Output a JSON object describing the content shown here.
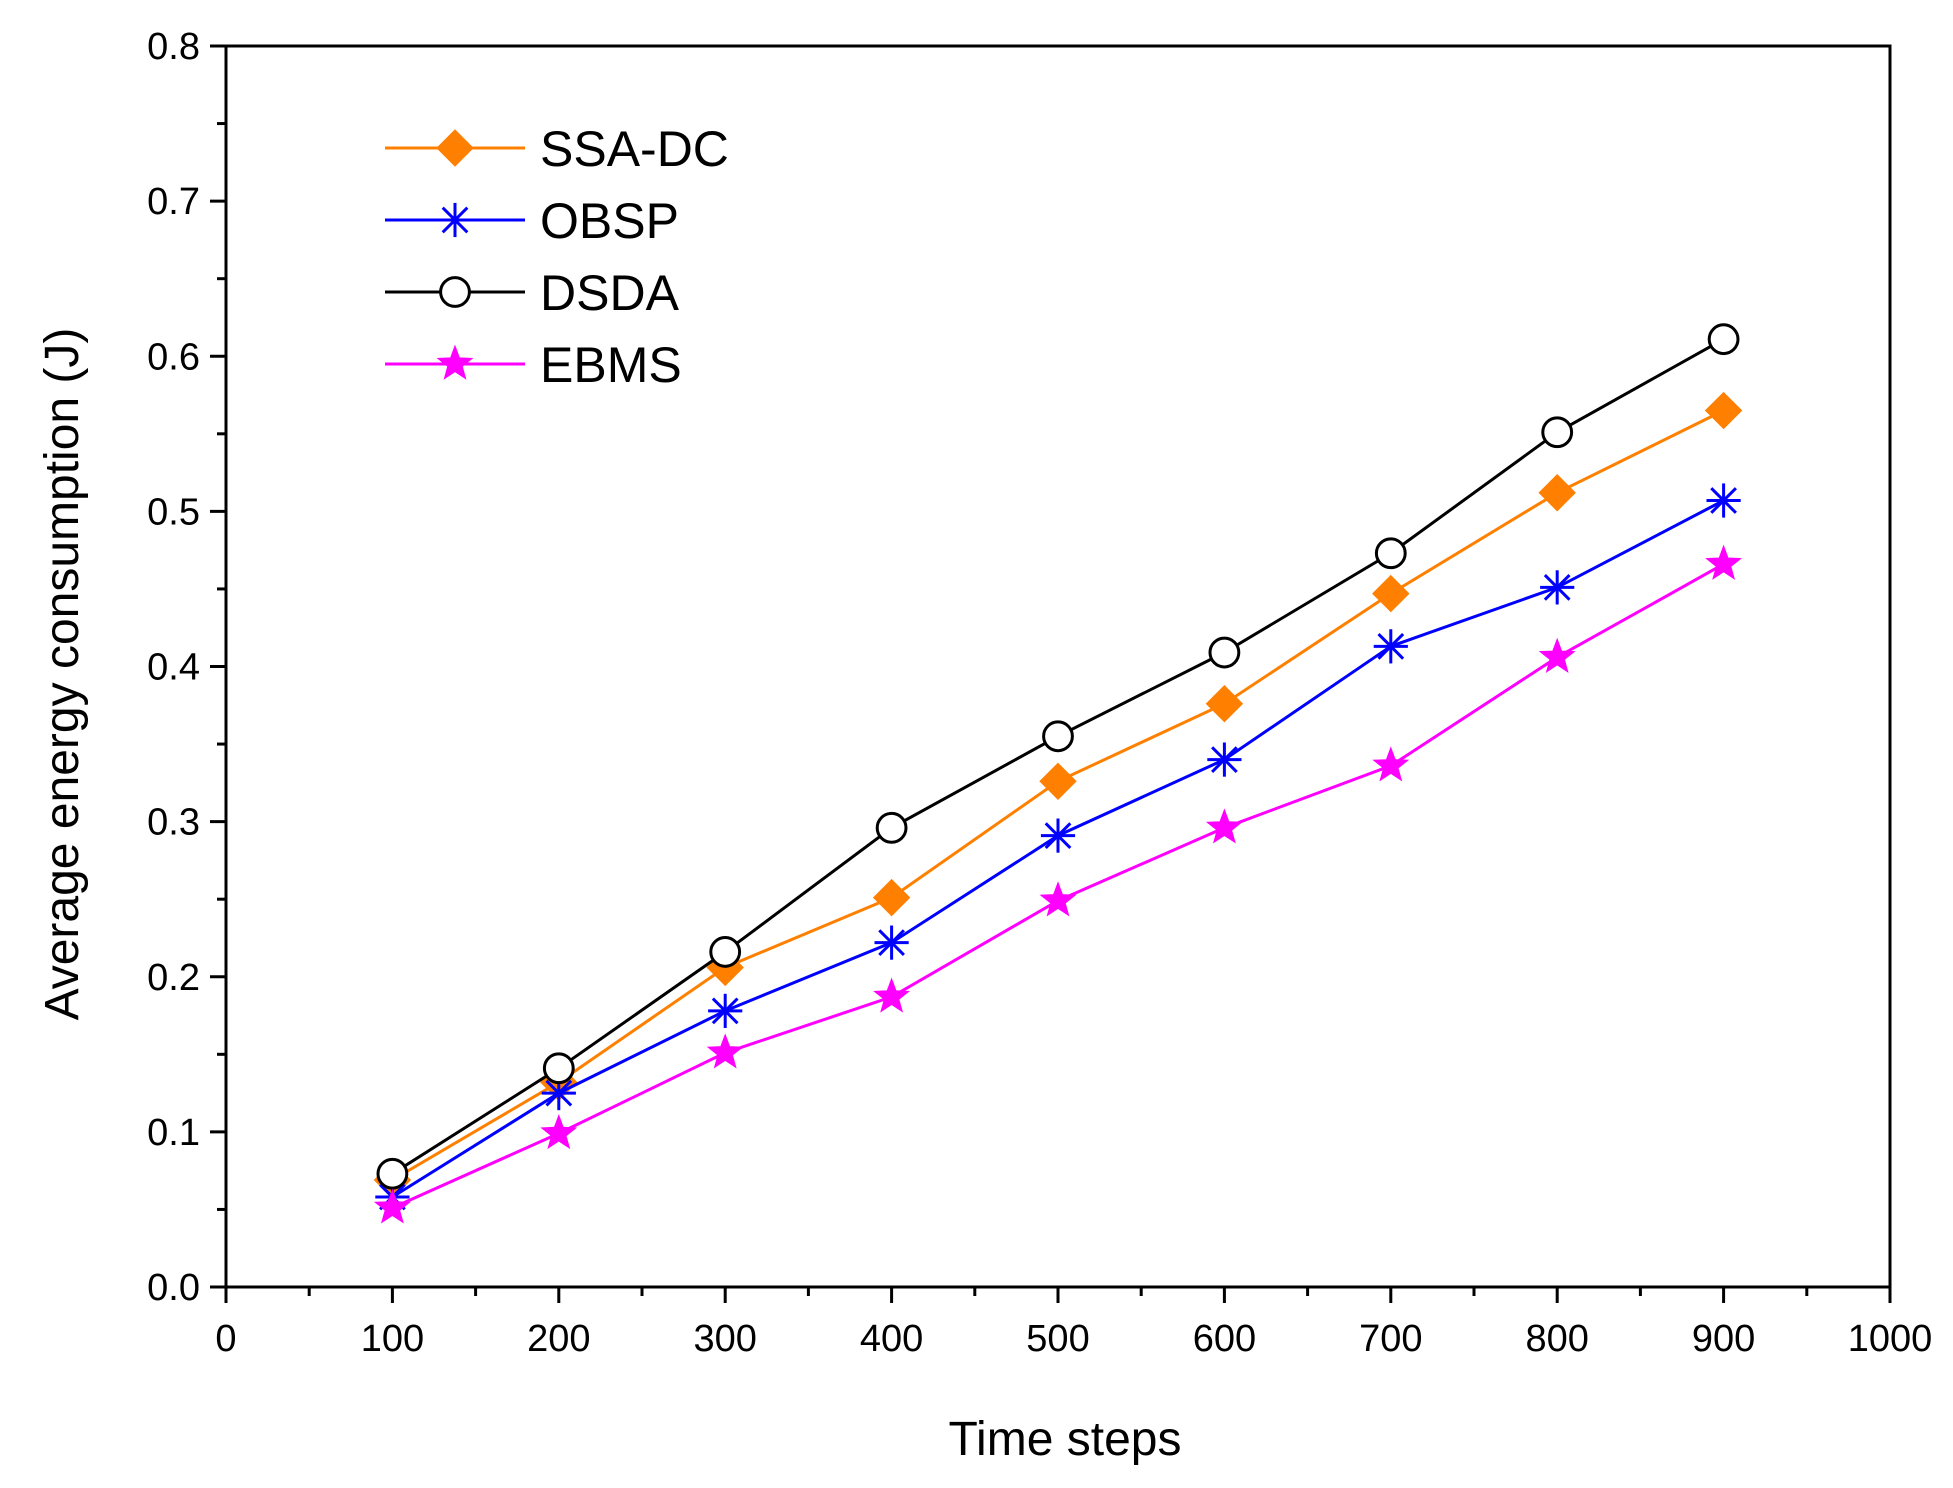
{
  "chart_data": {
    "type": "line",
    "title": "",
    "xlabel": "Time steps",
    "ylabel": "Average energy consumption (J)",
    "xlim": [
      0,
      1000
    ],
    "ylim": [
      0.0,
      0.8
    ],
    "x_ticks": [
      "0",
      "100",
      "200",
      "300",
      "400",
      "500",
      "600",
      "700",
      "800",
      "900",
      "1000"
    ],
    "y_ticks": [
      "0.0",
      "0.1",
      "0.2",
      "0.3",
      "0.4",
      "0.5",
      "0.6",
      "0.7",
      "0.8"
    ],
    "grid": false,
    "legend_position": "top-left",
    "x": [
      100,
      200,
      300,
      400,
      500,
      600,
      700,
      800,
      900
    ],
    "series": [
      {
        "name": "SSA-DC",
        "color": "#ff7f00",
        "line_color": "#ff8000",
        "marker": "diamond",
        "values": [
          0.069,
          0.132,
          0.206,
          0.251,
          0.326,
          0.376,
          0.447,
          0.512,
          0.565
        ]
      },
      {
        "name": "OBSP",
        "color": "#0000ff",
        "line_color": "#0000ff",
        "marker": "asterisk",
        "values": [
          0.058,
          0.125,
          0.178,
          0.222,
          0.291,
          0.34,
          0.413,
          0.451,
          0.507
        ]
      },
      {
        "name": "DSDA",
        "color": "#000000",
        "line_color": "#000000",
        "marker": "open-circle",
        "values": [
          0.073,
          0.141,
          0.216,
          0.296,
          0.355,
          0.409,
          0.473,
          0.551,
          0.611
        ]
      },
      {
        "name": "EBMS",
        "color": "#ff00ff",
        "line_color": "#ff00ff",
        "marker": "star",
        "values": [
          0.051,
          0.099,
          0.151,
          0.187,
          0.249,
          0.296,
          0.336,
          0.406,
          0.466
        ]
      }
    ]
  }
}
